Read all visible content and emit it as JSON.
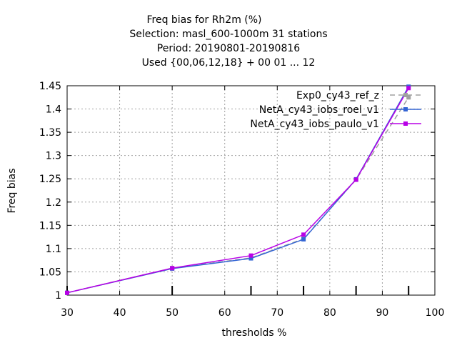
{
  "title_lines": [
    "Freq bias  for Rh2m (%)",
    "Selection: masl_600-1000m     31 stations",
    "Period: 20190801-20190816",
    "Used {00,06,12,18} + 00 01 ... 12"
  ],
  "chart_data": {
    "type": "line",
    "title": "Freq bias  for Rh2m (%)",
    "xlabel": "thresholds %",
    "ylabel": "Freq bias",
    "xlim": [
      30,
      100
    ],
    "ylim": [
      1,
      1.45
    ],
    "x_ticks": [
      "30",
      "40",
      "50",
      "60",
      "70",
      "80",
      "90",
      "100"
    ],
    "y_ticks": [
      "1",
      "1.05",
      "1.1",
      "1.15",
      "1.2",
      "1.25",
      "1.3",
      "1.35",
      "1.4",
      "1.45"
    ],
    "grid": true,
    "legend_position": "top-right",
    "x": [
      30,
      50,
      65,
      75,
      85,
      95
    ],
    "series": [
      {
        "name": "Exp0_cy43_ref_z",
        "values": [
          1.005,
          1.058,
          1.08,
          1.121,
          1.248,
          1.425
        ],
        "color": "#a0a0a0",
        "dashed": true
      },
      {
        "name": "NetA_cy43_iobs_roel_v1",
        "values": [
          1.005,
          1.057,
          1.079,
          1.12,
          1.249,
          1.448
        ],
        "color": "#3465d4",
        "dashed": false
      },
      {
        "name": "NetA_cy43_iobs_paulo_v1",
        "values": [
          1.005,
          1.058,
          1.085,
          1.13,
          1.248,
          1.445
        ],
        "color": "#b800e6",
        "dashed": false
      }
    ]
  }
}
